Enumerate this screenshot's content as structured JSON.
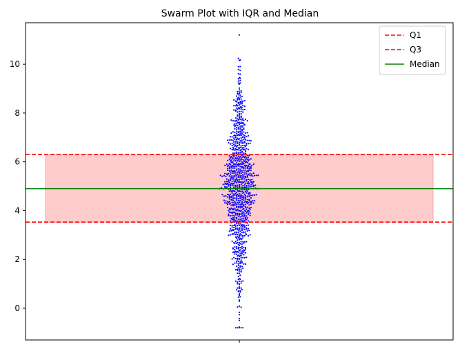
{
  "chart_data": {
    "type": "scatter",
    "subtype": "swarm",
    "title": "Swarm Plot with IQR and Median",
    "xlabel": "",
    "ylabel": "",
    "x_ticks": [
      ""
    ],
    "y_ticks": [
      0,
      2,
      4,
      6,
      8,
      10
    ],
    "ylim": [
      -1.3,
      11.7
    ],
    "grid": false,
    "legend_position": "top-right",
    "n_points": 1000,
    "distribution": {
      "center": 4.9,
      "spread": 2.0,
      "min": -0.8,
      "max": 11.2
    },
    "marker_color": "#0000ff",
    "q1": 3.53,
    "q3": 6.3,
    "median": 4.9,
    "iqr_fill_color": "#ffcccc",
    "q_line_color": "#ff0000",
    "median_line_color": "#008000",
    "legend": [
      {
        "label": "Q1",
        "style": "dashed",
        "color": "#ff0000"
      },
      {
        "label": "Q3",
        "style": "dashed",
        "color": "#ff0000"
      },
      {
        "label": "Median",
        "style": "solid",
        "color": "#008000"
      }
    ]
  }
}
